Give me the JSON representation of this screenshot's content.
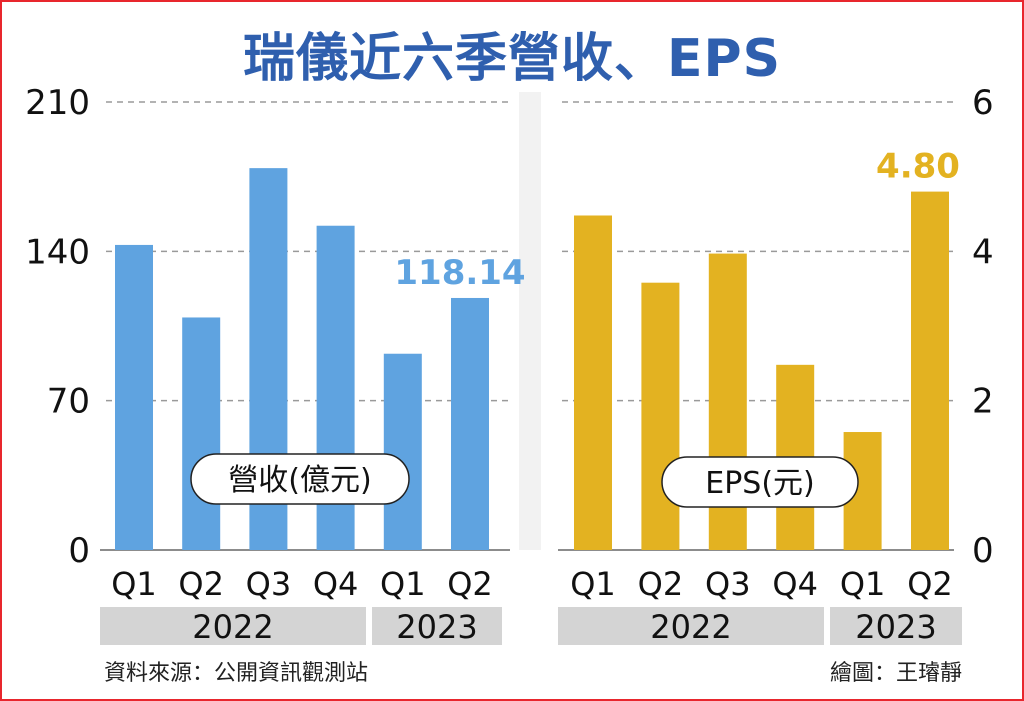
{
  "title": "瑞儀近六季營收、EPS",
  "source": "資料來源：公開資訊觀測站",
  "credit": "繪圖：王璿靜",
  "colors": {
    "revenue": "#5fa3e0",
    "eps": "#e3b221",
    "title": "#2f5fae",
    "frame": "#e8262d"
  },
  "chart_data": [
    {
      "type": "bar",
      "label": "營收(億元)",
      "categories": [
        "Q1",
        "Q2",
        "Q3",
        "Q4",
        "Q1",
        "Q2"
      ],
      "groups": [
        {
          "label": "2022",
          "span": 4
        },
        {
          "label": "2023",
          "span": 2
        }
      ],
      "values": [
        143,
        109,
        179,
        152,
        92,
        118.14
      ],
      "ylim": [
        0,
        210
      ],
      "yticks": [
        "0",
        "70",
        "140",
        "210"
      ],
      "data_labels": [
        {
          "index": 5,
          "text": "118.14"
        }
      ]
    },
    {
      "type": "bar",
      "label": "EPS(元)",
      "categories": [
        "Q1",
        "Q2",
        "Q3",
        "Q4",
        "Q1",
        "Q2"
      ],
      "groups": [
        {
          "label": "2022",
          "span": 4
        },
        {
          "label": "2023",
          "span": 2
        }
      ],
      "values": [
        4.48,
        3.58,
        3.97,
        2.48,
        1.58,
        4.8
      ],
      "ylim": [
        0,
        6
      ],
      "yticks": [
        "0",
        "2",
        "4",
        "6"
      ],
      "data_labels": [
        {
          "index": 5,
          "text": "4.80"
        }
      ]
    }
  ]
}
